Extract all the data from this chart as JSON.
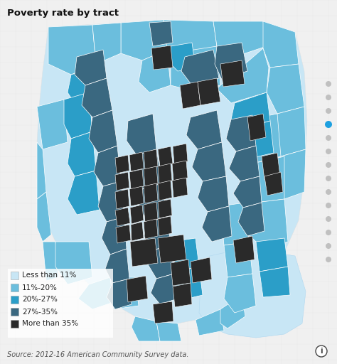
{
  "title": "Poverty rate by tract",
  "source_text": "Source: 2012-16 American Community Survey data.",
  "background_color": "#f0f0f0",
  "legend_items": [
    {
      "label": "Less than 11%",
      "color": "#c8e6f5"
    },
    {
      "label": "11%-20%",
      "color": "#6bbedd"
    },
    {
      "label": "20%-27%",
      "color": "#2b9ec8"
    },
    {
      "label": "27%-35%",
      "color": "#3a6880"
    },
    {
      "label": "More than 35%",
      "color": "#2a2a2a"
    }
  ],
  "title_fontsize": 9.5,
  "source_fontsize": 7,
  "legend_fontsize": 7.5,
  "figsize": [
    4.74,
    5.12
  ],
  "dpi": 100,
  "dot_color_active": "#1da0e0",
  "dot_color_inactive": "#c0c0c0",
  "info_circle_color": "#444444",
  "road_color": "#e0e8ee",
  "border_color": "#ffffff",
  "water_color": "#c8e6f5"
}
